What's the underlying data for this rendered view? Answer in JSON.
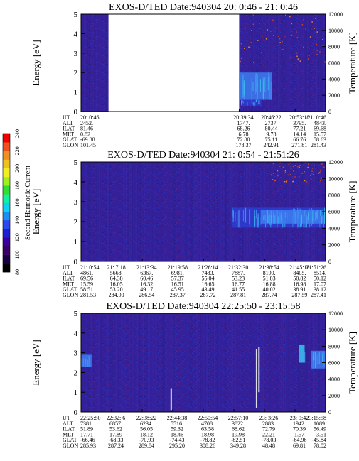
{
  "colors": {
    "background_purple": "#35209a",
    "mid_blue": "#2c40d8",
    "bright_blue": "#3c7df0",
    "cyan": "#36c8f0",
    "red_dot": "#c8402a",
    "orange_dot": "#e08a30"
  },
  "colorbar": {
    "label": "Second Harmonic Current",
    "ticks": [
      "80",
      "100",
      "120",
      "140",
      "160",
      "180",
      "200",
      "220",
      "240"
    ],
    "colors": [
      "#000000",
      "#1a0040",
      "#3a0068",
      "#3c00a0",
      "#1f1fd8",
      "#2c48f0",
      "#1c8ef0",
      "#10d0f0",
      "#10f0a0",
      "#30e030",
      "#a0f020",
      "#f0f020",
      "#f0c020",
      "#f09020",
      "#f05020",
      "#f00000"
    ]
  },
  "labels": {
    "energy_axis": "Energy [eV]",
    "temperature_axis": "Temperature [K]",
    "row_labels": [
      "UT",
      "ALT",
      "ILAT",
      "MLT",
      "GLAT",
      "GLON"
    ]
  },
  "chart_data": [
    {
      "type": "heatmap",
      "title": "EXOS-D/TED   Date:940304  20: 0:46 - 21: 0:46",
      "ylabel": "Energy [eV]",
      "ylim": [
        0,
        5
      ],
      "yticks": [
        "0",
        "1",
        "2",
        "3",
        "4",
        "5"
      ],
      "y2label": "Temperature [K]",
      "y2lim": [
        0,
        12000
      ],
      "y2ticks": [
        "0",
        "2000",
        "4000",
        "6000",
        "8000",
        "10000",
        "12000"
      ],
      "x_start": "20:0:46",
      "x_end": "21:0:46",
      "data_gap": {
        "start": "20:07:30",
        "end": "20:39:34"
      },
      "enhancements": [
        {
          "start": "20:39:50",
          "end": "20:47:30",
          "energy_min": 0.6,
          "energy_max": 2.0,
          "level": "bright"
        },
        {
          "start": "20:40:00",
          "end": "20:45:00",
          "energy_min": 0.3,
          "energy_max": 0.6,
          "level": "mid"
        }
      ],
      "hot_region": {
        "start": "20:39:34",
        "end": "21:0:46",
        "energy_min": 2.5,
        "energy_max": 5.0
      },
      "table": [
        {
          "UT": "20: 0:46",
          "ALT": "2452.",
          "ILAT": "81.46",
          "MLT": "0.82",
          "GLAT": "-69.88",
          "GLON": "101.45"
        },
        {
          "UT": "20:39:34",
          "ALT": "1747.",
          "ILAT": "68.26",
          "MLT": "6.78",
          "GLAT": "72.80",
          "GLON": "178.37"
        },
        {
          "UT": "20:46:22",
          "ALT": "2737.",
          "ILAT": "80.44",
          "MLT": "9.78",
          "GLAT": "75.11",
          "GLON": "242.91"
        },
        {
          "UT": "20:53:18",
          "ALT": "3795.",
          "ILAT": "77.21",
          "MLT": "14.14",
          "GLAT": "66.76",
          "GLON": "271.81"
        },
        {
          "UT": "21: 0:46",
          "ALT": "4843.",
          "ILAT": "69.68",
          "MLT": "15.57",
          "GLAT": "58.63",
          "GLON": "281.43"
        }
      ]
    },
    {
      "type": "heatmap",
      "title": "EXOS-D/TED   Date:940304  21: 0:54 - 21:51:26",
      "ylabel": "Energy [eV]",
      "ylim": [
        0,
        5
      ],
      "yticks": [
        "0",
        "1",
        "2",
        "3",
        "4",
        "5"
      ],
      "y2label": "Temperature [K]",
      "y2lim": [
        0,
        12000
      ],
      "y2ticks": [
        "0",
        "2000",
        "4000",
        "6000",
        "8000",
        "10000",
        "12000"
      ],
      "x_start": "21:0:54",
      "x_end": "21:51:26",
      "enhancements": [
        {
          "start": "21:32:00",
          "end": "21:51:26",
          "energy_min": 1.7,
          "energy_max": 2.7,
          "level": "mid"
        },
        {
          "start": "21:38:00",
          "end": "21:51:00",
          "energy_min": 1.9,
          "energy_max": 2.6,
          "level": "bright"
        }
      ],
      "hot_region": {
        "start": "21:40:00",
        "end": "21:51:26",
        "energy_min": 4.0,
        "energy_max": 5.0
      },
      "table": [
        {
          "UT": "21: 0:54",
          "ALT": "4861.",
          "ILAT": "69.56",
          "MLT": "15.59",
          "GLAT": "58.51",
          "GLON": "281.53"
        },
        {
          "UT": "21: 7:18",
          "ALT": "5668.",
          "ILAT": "64.38",
          "MLT": "16.05",
          "GLAT": "53.20",
          "GLON": "284.90"
        },
        {
          "UT": "21:13:34",
          "ALT": "6367.",
          "ILAT": "60.46",
          "MLT": "16.32",
          "GLAT": "49.17",
          "GLON": "286.54"
        },
        {
          "UT": "21:19:58",
          "ALT": "6981.",
          "ILAT": "57.37",
          "MLT": "16.51",
          "GLAT": "45.95",
          "GLON": "287.37"
        },
        {
          "UT": "21:26:14",
          "ALT": "7483.",
          "ILAT": "55.04",
          "MLT": "16.65",
          "GLAT": "43.49",
          "GLON": "287.72"
        },
        {
          "UT": "21:32:30",
          "ALT": "7887.",
          "ILAT": "53.23",
          "MLT": "16.77",
          "GLAT": "41.55",
          "GLON": "287.81"
        },
        {
          "UT": "21:38:54",
          "ALT": "8199.",
          "ILAT": "51.83",
          "MLT": "16.88",
          "GLAT": "40.02",
          "GLON": "287.74"
        },
        {
          "UT": "21:45:10",
          "ALT": "8405.",
          "ILAT": "50.82",
          "MLT": "16.98",
          "GLAT": "38.91",
          "GLON": "287.59"
        },
        {
          "UT": "21:51:26",
          "ALT": "8514.",
          "ILAT": "50.12",
          "MLT": "17.07",
          "GLAT": "38.12",
          "GLON": "287.41"
        }
      ]
    },
    {
      "type": "heatmap",
      "title": "EXOS-D/TED   Date:940304  22:25:50 - 23:15:58",
      "ylabel": "Energy [eV]",
      "ylim": [
        0,
        5
      ],
      "yticks": [
        "0",
        "1",
        "2",
        "3",
        "4",
        "5"
      ],
      "y2label": "Temperature [K]",
      "y2lim": [
        0,
        12000
      ],
      "y2ticks": [
        "0",
        "2000",
        "4000",
        "6000",
        "8000",
        "10000",
        "12000"
      ],
      "x_start": "22:25:50",
      "x_end": "23:15:58",
      "enhancements": [
        {
          "start": "22:25:50",
          "end": "22:28:00",
          "energy_min": 2.3,
          "energy_max": 2.9,
          "level": "bright"
        },
        {
          "start": "23:13:00",
          "end": "23:15:58",
          "energy_min": 2.2,
          "energy_max": 3.1,
          "level": "bright"
        },
        {
          "start": "23:10:30",
          "end": "23:11:40",
          "energy_min": 2.5,
          "energy_max": 3.4,
          "level": "cyan"
        }
      ],
      "spikes": [
        {
          "time": "22:44:10",
          "energy_min": 0.1,
          "energy_max": 1.2
        },
        {
          "time": "23:01:40",
          "energy_min": 0.2,
          "energy_max": 3.2
        },
        {
          "time": "23:02:10",
          "energy_min": 1.0,
          "energy_max": 3.3
        }
      ],
      "table": [
        {
          "UT": "22:25:50",
          "ALT": "7381.",
          "ILAT": "51.89",
          "MLT": "17.71",
          "GLAT": "-66.46",
          "GLON": "285.93"
        },
        {
          "UT": "22:32: 6",
          "ALT": "6857.",
          "ILAT": "53.62",
          "MLT": "17.89",
          "GLAT": "-68.33",
          "GLON": "287.24"
        },
        {
          "UT": "22:38:22",
          "ALT": "6234.",
          "ILAT": "56.05",
          "MLT": "18.12",
          "GLAT": "-70.93",
          "GLON": "289.84"
        },
        {
          "UT": "22:44:38",
          "ALT": "5516.",
          "ILAT": "59.32",
          "MLT": "18.46",
          "GLAT": "-74.43",
          "GLON": "295.20"
        },
        {
          "UT": "22:50:54",
          "ALT": "4708.",
          "ILAT": "63.58",
          "MLT": "18.98",
          "GLAT": "-78.82",
          "GLON": "308.26"
        },
        {
          "UT": "22:57:10",
          "ALT": "3822.",
          "ILAT": "68.62",
          "MLT": "19.98",
          "GLAT": "-82.51",
          "GLON": "349.28"
        },
        {
          "UT": "23: 3:26",
          "ALT": "2883.",
          "ILAT": "72.79",
          "MLT": "22.21",
          "GLAT": "-78.03",
          "GLON": "48.48"
        },
        {
          "UT": "23: 9:42",
          "ALT": "1942.",
          "ILAT": "70.39",
          "MLT": "1.57",
          "GLAT": "-64.96",
          "GLON": "69.81"
        },
        {
          "UT": "23:15:58",
          "ALT": "1089.",
          "ILAT": "56.49",
          "MLT": "3.51",
          "GLAT": "-45.84",
          "GLON": "78.02"
        }
      ]
    }
  ]
}
